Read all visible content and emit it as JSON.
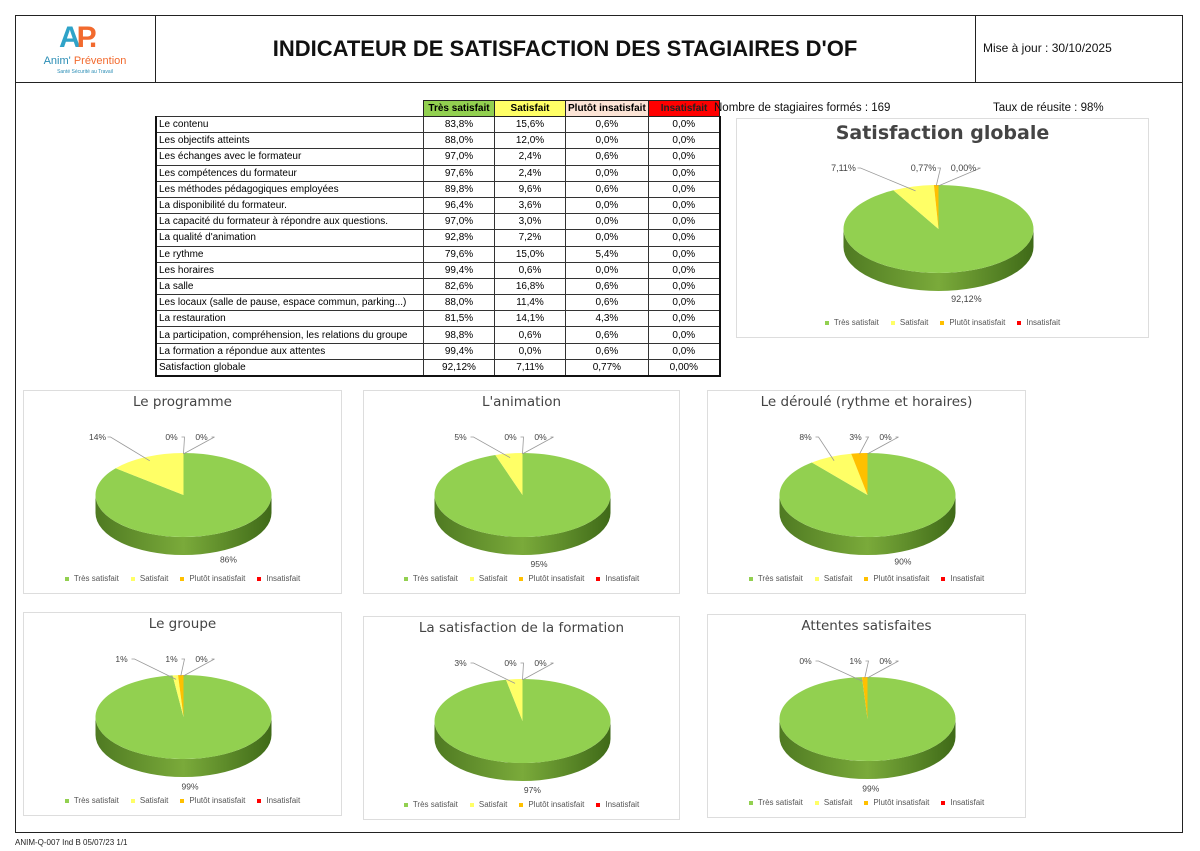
{
  "header": {
    "logo_text_1": "Anim'",
    "logo_text_2": "Prévention",
    "logo_tagline": "Santé Sécurité au Travail",
    "logo_mark_a": "A",
    "logo_mark_p": "P.",
    "title": "INDICATEUR DE SATISFACTION DES STAGIAIRES D'OF",
    "date": "Mise à jour : 30/10/2025"
  },
  "stats": {
    "trained": "Nombre de stagiaires formés : 169",
    "success": "Taux de réusite : 98%"
  },
  "colors": {
    "tres": "#92d050",
    "satisfait": "#ffff66",
    "plutot": "#ffc000",
    "insatisfait": "#ff0000",
    "plutot_header": "#fce4d6"
  },
  "table": {
    "headers": [
      "Très satisfait",
      "Satisfait",
      "Plutôt insatisfait",
      "Insatisfait"
    ],
    "rows": [
      {
        "label": "Le contenu",
        "values": [
          "83,8%",
          "15,6%",
          "0,6%",
          "0,0%"
        ]
      },
      {
        "label": "Les objectifs atteints",
        "values": [
          "88,0%",
          "12,0%",
          "0,0%",
          "0,0%"
        ]
      },
      {
        "label": "Les échanges avec le formateur",
        "values": [
          "97,0%",
          "2,4%",
          "0,6%",
          "0,0%"
        ]
      },
      {
        "label": "Les compétences du formateur",
        "values": [
          "97,6%",
          "2,4%",
          "0,0%",
          "0,0%"
        ]
      },
      {
        "label": "Les méthodes pédagogiques employées",
        "values": [
          "89,8%",
          "9,6%",
          "0,6%",
          "0,0%"
        ]
      },
      {
        "label": "La disponibilité du formateur.",
        "values": [
          "96,4%",
          "3,6%",
          "0,0%",
          "0,0%"
        ]
      },
      {
        "label": "La capacité du formateur à répondre aux questions.",
        "values": [
          "97,0%",
          "3,0%",
          "0,0%",
          "0,0%"
        ]
      },
      {
        "label": "La qualité d'animation",
        "values": [
          "92,8%",
          "7,2%",
          "0,0%",
          "0,0%"
        ]
      },
      {
        "label": "Le rythme",
        "values": [
          "79,6%",
          "15,0%",
          "5,4%",
          "0,0%"
        ]
      },
      {
        "label": "Les horaires",
        "values": [
          "99,4%",
          "0,6%",
          "0,0%",
          "0,0%"
        ]
      },
      {
        "label": "La salle",
        "values": [
          "82,6%",
          "16,8%",
          "0,6%",
          "0,0%"
        ]
      },
      {
        "label": "Les locaux (salle de pause, espace commun, parking...)",
        "values": [
          "88,0%",
          "11,4%",
          "0,6%",
          "0,0%"
        ]
      },
      {
        "label": "La restauration",
        "values": [
          "81,5%",
          "14,1%",
          "4,3%",
          "0,0%"
        ]
      },
      {
        "label": "La participation, compréhension, les relations du groupe",
        "values": [
          "98,8%",
          "0,6%",
          "0,6%",
          "0,0%"
        ]
      },
      {
        "label": "La formation a répondue aux attentes",
        "values": [
          "99,4%",
          "0,0%",
          "0,6%",
          "0,0%"
        ]
      },
      {
        "label": "Satisfaction globale",
        "values": [
          "92,12%",
          "7,11%",
          "0,77%",
          "0,00%"
        ]
      }
    ]
  },
  "chart_data": [
    {
      "type": "pie",
      "title": "Satisfaction globale",
      "categories": [
        "Très satisfait",
        "Satisfait",
        "Plutôt insatisfait",
        "Insatisfait"
      ],
      "values": [
        92.12,
        7.11,
        0.77,
        0.0
      ],
      "labels": [
        "92,12%",
        "7,11%",
        "0,77%",
        "0,00%"
      ],
      "legend": "bottom"
    },
    {
      "type": "pie",
      "title": "Le programme",
      "categories": [
        "Très satisfait",
        "Satisfait",
        "Plutôt insatisfait",
        "Insatisfait"
      ],
      "values": [
        86,
        14,
        0,
        0
      ],
      "labels": [
        "86%",
        "14%",
        "0%",
        "0%"
      ],
      "legend": "bottom"
    },
    {
      "type": "pie",
      "title": "L'animation",
      "categories": [
        "Très satisfait",
        "Satisfait",
        "Plutôt insatisfait",
        "Insatisfait"
      ],
      "values": [
        95,
        5,
        0,
        0
      ],
      "labels": [
        "95%",
        "5%",
        "0%",
        "0%"
      ],
      "legend": "bottom"
    },
    {
      "type": "pie",
      "title": "Le déroulé (rythme et horaires)",
      "categories": [
        "Très satisfait",
        "Satisfait",
        "Plutôt insatisfait",
        "Insatisfait"
      ],
      "values": [
        90,
        8,
        3,
        0
      ],
      "labels": [
        "90%",
        "8%",
        "3%",
        "0%"
      ],
      "legend": "bottom"
    },
    {
      "type": "pie",
      "title": "Le groupe",
      "categories": [
        "Très satisfait",
        "Satisfait",
        "Plutôt insatisfait",
        "Insatisfait"
      ],
      "values": [
        99,
        1,
        1,
        0
      ],
      "labels": [
        "99%",
        "1%",
        "1%",
        "0%"
      ],
      "legend": "bottom"
    },
    {
      "type": "pie",
      "title": "La satisfaction de la  formation",
      "categories": [
        "Très satisfait",
        "Satisfait",
        "Plutôt insatisfait",
        "Insatisfait"
      ],
      "values": [
        97,
        3,
        0,
        0
      ],
      "labels": [
        "97%",
        "3%",
        "0%",
        "0%"
      ],
      "legend": "bottom"
    },
    {
      "type": "pie",
      "title": "Attentes satisfaites",
      "categories": [
        "Très satisfait",
        "Satisfait",
        "Plutôt insatisfait",
        "Insatisfait"
      ],
      "values": [
        99,
        0,
        1,
        0
      ],
      "labels": [
        "99%",
        "0%",
        "1%",
        "0%"
      ],
      "legend": "bottom"
    }
  ],
  "footer": "ANIM-Q-007 Ind B 05/07/23 1/1"
}
